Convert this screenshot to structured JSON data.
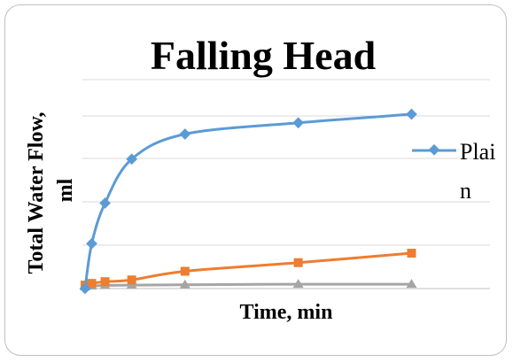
{
  "chart_data": {
    "type": "line",
    "title": "Falling Head",
    "xlabel": "Time, min",
    "ylabel": "Total Water Flow, ml",
    "ylim": [
      0,
      1000
    ],
    "xlim": [
      0,
      50
    ],
    "grid": true,
    "legend_position": "right",
    "series": [
      {
        "name": "Plain",
        "color": "#5b9bd5",
        "marker": "diamond",
        "x": [
          0,
          1,
          3,
          7,
          15,
          32,
          49
        ],
        "y": [
          0,
          260,
          495,
          750,
          895,
          960,
          1010
        ]
      },
      {
        "color": "#ed7d31",
        "marker": "square",
        "x": [
          0,
          1,
          3,
          7,
          15,
          32,
          49
        ],
        "y": [
          20,
          30,
          40,
          50,
          100,
          150,
          205
        ]
      },
      {
        "color": "#a5a5a5",
        "marker": "triangle",
        "x": [
          0,
          1,
          3,
          7,
          15,
          32,
          49
        ],
        "y": [
          10,
          15,
          18,
          20,
          22,
          25,
          25
        ]
      }
    ]
  }
}
